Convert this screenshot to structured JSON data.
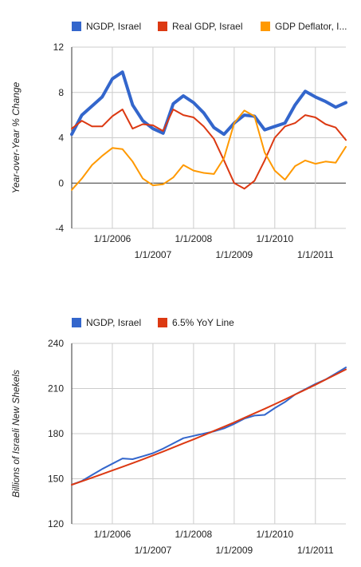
{
  "chart_data": [
    {
      "type": "line",
      "ylabel": "Year-over-Year % Change",
      "ylim": [
        -4,
        12
      ],
      "yticks": [
        "12",
        "8",
        "4",
        "0",
        "-4"
      ],
      "xlim": [
        2005.0,
        2011.75
      ],
      "x_tick_labels": [
        "1/1/2006",
        "1/1/2007",
        "1/1/2008",
        "1/1/2009",
        "1/1/2010",
        "1/1/2011"
      ],
      "legend_position": "top",
      "zero_line": true,
      "x": [
        2005.0,
        2005.25,
        2005.5,
        2005.75,
        2006.0,
        2006.25,
        2006.5,
        2006.75,
        2007.0,
        2007.25,
        2007.5,
        2007.75,
        2008.0,
        2008.25,
        2008.5,
        2008.75,
        2009.0,
        2009.25,
        2009.5,
        2009.75,
        2010.0,
        2010.25,
        2010.5,
        2010.75,
        2011.0,
        2011.25,
        2011.5,
        2011.75
      ],
      "series": [
        {
          "name": "NGDP, Israel",
          "color": "#3366cc",
          "width": 4,
          "values": [
            4.3,
            6.0,
            6.8,
            7.6,
            9.2,
            9.8,
            6.9,
            5.5,
            4.8,
            4.4,
            7.0,
            7.7,
            7.1,
            6.2,
            4.9,
            4.3,
            5.3,
            6.0,
            5.9,
            4.7,
            5.0,
            5.3,
            6.9,
            8.1,
            7.6,
            7.2,
            6.7,
            7.1
          ]
        },
        {
          "name": "Real GDP, Israel",
          "color": "#dc3912",
          "width": 2,
          "values": [
            4.8,
            5.5,
            5.0,
            5.0,
            5.9,
            6.5,
            4.8,
            5.2,
            5.1,
            4.6,
            6.5,
            6.0,
            5.8,
            5.0,
            3.9,
            2.0,
            0.0,
            -0.5,
            0.2,
            2.0,
            4.0,
            5.0,
            5.3,
            6.0,
            5.8,
            5.2,
            4.9,
            3.8
          ]
        },
        {
          "name": "GDP Deflator, I...",
          "color": "#ff9900",
          "width": 2,
          "values": [
            -0.6,
            0.4,
            1.6,
            2.4,
            3.1,
            3.0,
            1.9,
            0.4,
            -0.2,
            -0.1,
            0.5,
            1.6,
            1.1,
            0.9,
            0.8,
            2.2,
            5.3,
            6.4,
            5.9,
            2.7,
            1.1,
            0.3,
            1.5,
            2.0,
            1.7,
            1.9,
            1.8,
            3.2
          ]
        }
      ]
    },
    {
      "type": "line",
      "ylabel": "Billions of Israeli New Shekels",
      "ylim": [
        120,
        240
      ],
      "yticks": [
        "240",
        "210",
        "180",
        "150",
        "120"
      ],
      "xlim": [
        2005.0,
        2011.75
      ],
      "x_tick_labels": [
        "1/1/2006",
        "1/1/2007",
        "1/1/2008",
        "1/1/2009",
        "1/1/2010",
        "1/1/2011"
      ],
      "legend_position": "top",
      "zero_line": false,
      "x": [
        2005.0,
        2005.25,
        2005.5,
        2005.75,
        2006.0,
        2006.25,
        2006.5,
        2006.75,
        2007.0,
        2007.25,
        2007.5,
        2007.75,
        2008.0,
        2008.25,
        2008.5,
        2008.75,
        2009.0,
        2009.25,
        2009.5,
        2009.75,
        2010.0,
        2010.25,
        2010.5,
        2010.75,
        2011.0,
        2011.25,
        2011.5,
        2011.75
      ],
      "series": [
        {
          "name": "NGDP, Israel",
          "color": "#3366cc",
          "width": 2,
          "values": [
            146.0,
            148.5,
            152.5,
            156.5,
            160.0,
            163.5,
            163.0,
            165.0,
            167.0,
            170.0,
            173.5,
            177.0,
            178.5,
            180.0,
            181.5,
            183.5,
            186.5,
            190.0,
            192.0,
            192.5,
            197.0,
            201.0,
            206.0,
            209.5,
            213.0,
            216.0,
            220.0,
            224.0
          ]
        },
        {
          "name": "6.5% YoY Line",
          "color": "#dc3912",
          "width": 2,
          "values": [
            146.0,
            148.3,
            150.7,
            153.1,
            155.5,
            157.9,
            160.4,
            162.9,
            165.5,
            168.1,
            170.8,
            173.5,
            176.2,
            179.0,
            181.8,
            184.6,
            187.5,
            190.5,
            193.5,
            196.5,
            199.6,
            202.8,
            206.0,
            209.2,
            212.5,
            215.9,
            219.3,
            222.7
          ]
        }
      ]
    }
  ]
}
